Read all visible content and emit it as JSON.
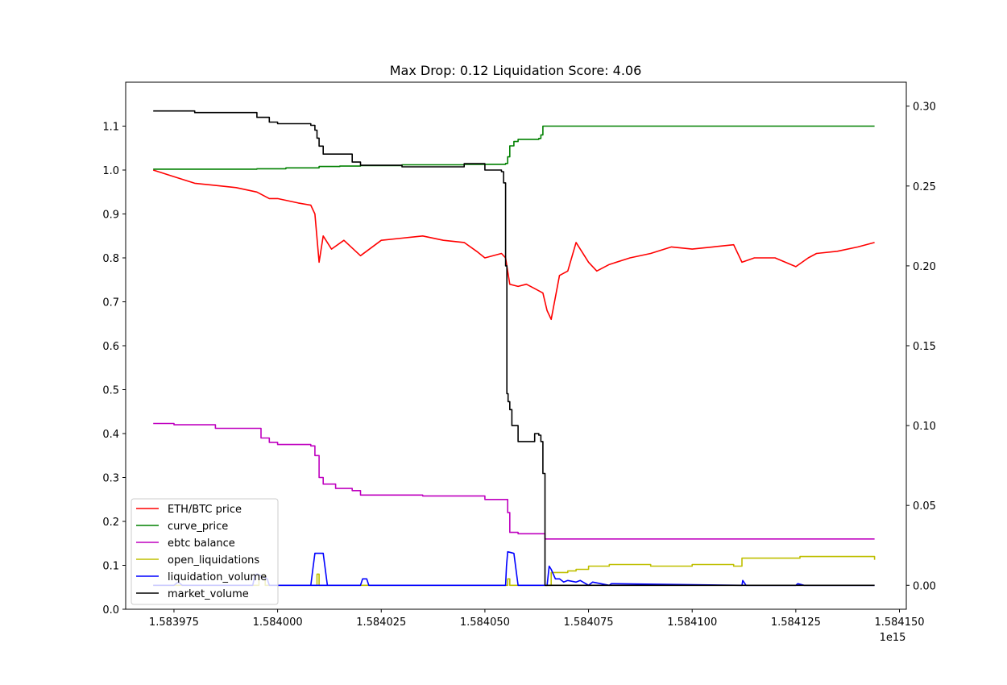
{
  "chart_data": {
    "type": "line",
    "title": "Max Drop: 0.12 Liquidation Score: 4.06",
    "x_offset_label": "1e15",
    "x_axis": {
      "range": [
        1.58396335,
        1.58415165
      ],
      "ticks": [
        1.583975,
        1.584,
        1.584025,
        1.58405,
        1.584075,
        1.5841,
        1.584125,
        1.58415
      ],
      "tick_labels": [
        "1.583975",
        "1.584000",
        "1.584025",
        "1.584050",
        "1.584075",
        "1.584100",
        "1.584125",
        "1.584150"
      ]
    },
    "y_left": {
      "range": [
        0,
        1.2
      ],
      "ticks": [
        0,
        0.1,
        0.2,
        0.3,
        0.4,
        0.5,
        0.6,
        0.7,
        0.8,
        0.9,
        1.0,
        1.1
      ],
      "tick_labels": [
        "0.0",
        "0.1",
        "0.2",
        "0.3",
        "0.4",
        "0.5",
        "0.6",
        "0.7",
        "0.8",
        "0.9",
        "1.0",
        "1.1"
      ]
    },
    "y_right": {
      "range": [
        -0.015,
        0.315
      ],
      "ticks": [
        0,
        0.05,
        0.1,
        0.15,
        0.2,
        0.25,
        0.3
      ],
      "tick_labels": [
        "0.00",
        "0.05",
        "0.10",
        "0.15",
        "0.20",
        "0.25",
        "0.30"
      ]
    },
    "legend": {
      "placement": "lower-left",
      "entries": [
        "ETH/BTC price",
        "curve_price",
        "ebtc balance",
        "open_liquidations",
        "liquidation_volume",
        "market_volume"
      ]
    },
    "series": [
      {
        "name": "ETH/BTC price",
        "color": "#ff0000",
        "axis": "left",
        "step": false,
        "x": [
          1.58397,
          1.583975,
          1.58398,
          1.583985,
          1.58399,
          1.583995,
          1.583998,
          1.584,
          1.584005,
          1.584008,
          1.584009,
          1.58401,
          1.584011,
          1.584013,
          1.584016,
          1.58402,
          1.584025,
          1.58403,
          1.584035,
          1.58404,
          1.584045,
          1.584048,
          1.58405,
          1.584054,
          1.584055,
          1.584056,
          1.584058,
          1.58406,
          1.584062,
          1.584064,
          1.584065,
          1.584066,
          1.584068,
          1.58407,
          1.584072,
          1.584075,
          1.584077,
          1.58408,
          1.584085,
          1.58409,
          1.584095,
          1.5841,
          1.584105,
          1.58411,
          1.584112,
          1.584115,
          1.58412,
          1.584125,
          1.584128,
          1.58413,
          1.584135,
          1.58414,
          1.584144
        ],
        "y": [
          1.0,
          0.985,
          0.97,
          0.965,
          0.96,
          0.95,
          0.935,
          0.935,
          0.925,
          0.92,
          0.9,
          0.79,
          0.85,
          0.82,
          0.84,
          0.805,
          0.84,
          0.845,
          0.85,
          0.84,
          0.835,
          0.815,
          0.8,
          0.81,
          0.8,
          0.74,
          0.735,
          0.74,
          0.73,
          0.72,
          0.68,
          0.66,
          0.76,
          0.77,
          0.835,
          0.79,
          0.77,
          0.785,
          0.8,
          0.81,
          0.825,
          0.82,
          0.825,
          0.83,
          0.79,
          0.8,
          0.8,
          0.78,
          0.8,
          0.81,
          0.815,
          0.825,
          0.835
        ]
      },
      {
        "name": "curve_price",
        "color": "#008000",
        "axis": "left",
        "step": true,
        "x": [
          1.58397,
          1.583995,
          1.584002,
          1.58401,
          1.584015,
          1.58402,
          1.58403,
          1.584045,
          1.584055,
          1.5840555,
          1.584056,
          1.584057,
          1.584058,
          1.58406,
          1.584063,
          1.5840635,
          1.584064,
          1.584144
        ],
        "y": [
          1.002,
          1.003,
          1.005,
          1.008,
          1.009,
          1.01,
          1.012,
          1.013,
          1.015,
          1.03,
          1.055,
          1.065,
          1.07,
          1.07,
          1.072,
          1.08,
          1.1,
          1.1
        ]
      },
      {
        "name": "ebtc balance",
        "color": "#bf00bf",
        "axis": "left",
        "step": true,
        "x": [
          1.58397,
          1.583975,
          1.583985,
          1.583995,
          1.583996,
          1.583998,
          1.584,
          1.584008,
          1.584009,
          1.58401,
          1.584011,
          1.584014,
          1.584018,
          1.58402,
          1.584025,
          1.584035,
          1.584045,
          1.58405,
          1.584055,
          1.5840555,
          1.584056,
          1.584058,
          1.584064,
          1.5840645,
          1.584144
        ],
        "y": [
          0.423,
          0.42,
          0.412,
          0.412,
          0.39,
          0.38,
          0.375,
          0.372,
          0.35,
          0.3,
          0.285,
          0.275,
          0.27,
          0.26,
          0.26,
          0.258,
          0.258,
          0.25,
          0.25,
          0.22,
          0.175,
          0.172,
          0.172,
          0.16,
          0.16
        ]
      },
      {
        "name": "open_liquidations",
        "color": "#bfbf00",
        "axis": "right",
        "step": true,
        "x": [
          1.58397,
          1.583995,
          1.5839955,
          1.583997,
          1.584009,
          1.5840095,
          1.58401,
          1.584055,
          1.5840555,
          1.584056,
          1.584064,
          1.584066,
          1.584068,
          1.58407,
          1.584072,
          1.584075,
          1.58408,
          1.58409,
          1.5841,
          1.58411,
          1.584112,
          1.584125,
          1.584126,
          1.584144
        ],
        "y": [
          0.0,
          0.0,
          0.006,
          0.0,
          0.0,
          0.007,
          0.0,
          0.0,
          0.004,
          0.0,
          0.0,
          0.008,
          0.008,
          0.009,
          0.01,
          0.012,
          0.013,
          0.012,
          0.013,
          0.012,
          0.017,
          0.017,
          0.018,
          0.016
        ]
      },
      {
        "name": "liquidation_volume",
        "color": "#0000ff",
        "axis": "right",
        "step": false,
        "x": [
          1.58397,
          1.583975,
          1.583976,
          1.583977,
          1.583985,
          1.583994,
          1.5839945,
          1.583995,
          1.5839975,
          1.583998,
          1.58402,
          1.584008,
          1.5840085,
          1.584009,
          1.584011,
          1.5840115,
          1.584012,
          1.58402,
          1.5840205,
          1.5840215,
          1.584022,
          1.584055,
          1.5840552,
          1.5840555,
          1.584057,
          1.5840575,
          1.584058,
          1.584065,
          1.5840655,
          1.584066,
          1.584067,
          1.584068,
          1.584069,
          1.58407,
          1.584072,
          1.584073,
          1.584075,
          1.584076,
          1.58408,
          1.5840805,
          1.584112,
          1.5841122,
          1.584113,
          1.584125,
          1.5841255,
          1.584127,
          1.584144
        ],
        "y": [
          0.0,
          0.0,
          0.002,
          0.0,
          0.0,
          0.0,
          0.006,
          0.007,
          0.004,
          0.0,
          0.0,
          0.0,
          0.01,
          0.02,
          0.02,
          0.01,
          0.0,
          0.0,
          0.004,
          0.004,
          0.0,
          0.0,
          0.012,
          0.021,
          0.02,
          0.01,
          0.0,
          0.0,
          0.012,
          0.01,
          0.004,
          0.004,
          0.002,
          0.003,
          0.002,
          0.003,
          0.0,
          0.002,
          0.0,
          0.001,
          0.0,
          0.003,
          0.0,
          0.0,
          0.001,
          0.0,
          0.0
        ]
      },
      {
        "name": "market_volume",
        "color": "#000000",
        "axis": "right",
        "step": true,
        "x": [
          1.58397,
          1.58398,
          1.583985,
          1.583995,
          1.583998,
          1.584,
          1.584008,
          1.584009,
          1.5840095,
          1.58401,
          1.584011,
          1.584014,
          1.584018,
          1.58402,
          1.584025,
          1.58403,
          1.58404,
          1.584045,
          1.58405,
          1.584053,
          1.584054,
          1.5840545,
          1.584055,
          1.5840553,
          1.5840556,
          1.584056,
          1.5840565,
          1.584057,
          1.584058,
          1.58406,
          1.584062,
          1.584063,
          1.5840635,
          1.584064,
          1.5840645,
          1.584144
        ],
        "y": [
          0.297,
          0.296,
          0.296,
          0.293,
          0.29,
          0.289,
          0.288,
          0.285,
          0.28,
          0.275,
          0.27,
          0.27,
          0.265,
          0.263,
          0.263,
          0.262,
          0.262,
          0.264,
          0.26,
          0.26,
          0.259,
          0.252,
          0.2,
          0.12,
          0.115,
          0.11,
          0.1,
          0.1,
          0.09,
          0.09,
          0.095,
          0.094,
          0.09,
          0.07,
          0.0,
          0.0
        ]
      }
    ]
  }
}
